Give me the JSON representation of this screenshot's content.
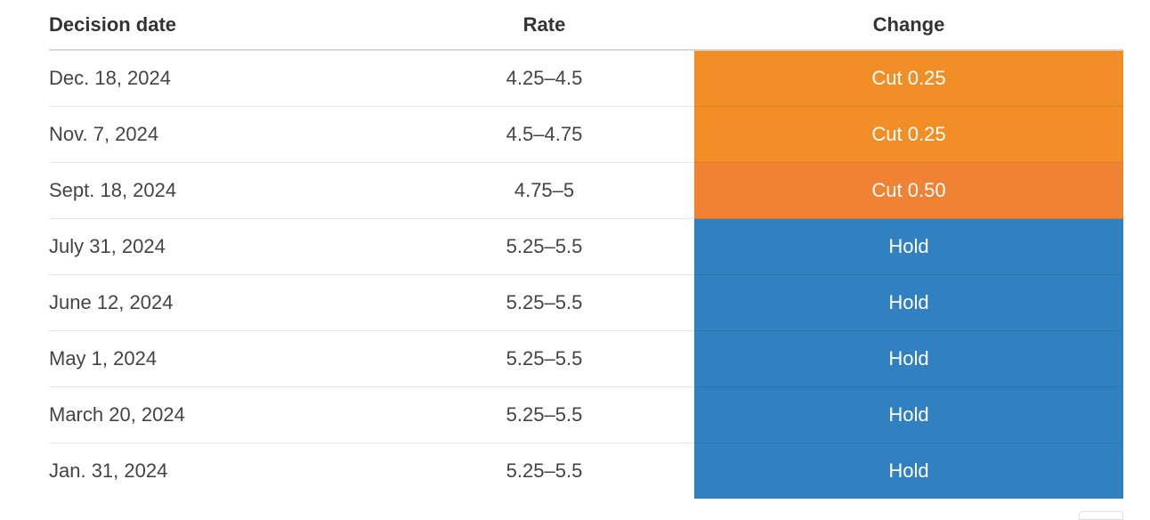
{
  "headers": {
    "decision_date": "Decision date",
    "rate": "Rate",
    "change": "Change"
  },
  "rows": [
    {
      "date": "Dec. 18, 2024",
      "rate": "4.25–4.5",
      "change": "Cut 0.25",
      "color": "#f18f26"
    },
    {
      "date": "Nov. 7, 2024",
      "rate": "4.5–4.75",
      "change": "Cut 0.25",
      "color": "#f18f26"
    },
    {
      "date": "Sept. 18, 2024",
      "rate": "4.75–5",
      "change": "Cut 0.50",
      "color": "#ef8233"
    },
    {
      "date": "July 31, 2024",
      "rate": "5.25–5.5",
      "change": "Hold",
      "color": "#3181c0"
    },
    {
      "date": "June 12, 2024",
      "rate": "5.25–5.5",
      "change": "Hold",
      "color": "#3181c0"
    },
    {
      "date": "May 1, 2024",
      "rate": "5.25–5.5",
      "change": "Hold",
      "color": "#3181c0"
    },
    {
      "date": "March 20, 2024",
      "rate": "5.25–5.5",
      "change": "Hold",
      "color": "#3181c0"
    },
    {
      "date": "Jan. 31, 2024",
      "rate": "5.25–5.5",
      "change": "Hold",
      "color": "#3181c0"
    }
  ]
}
